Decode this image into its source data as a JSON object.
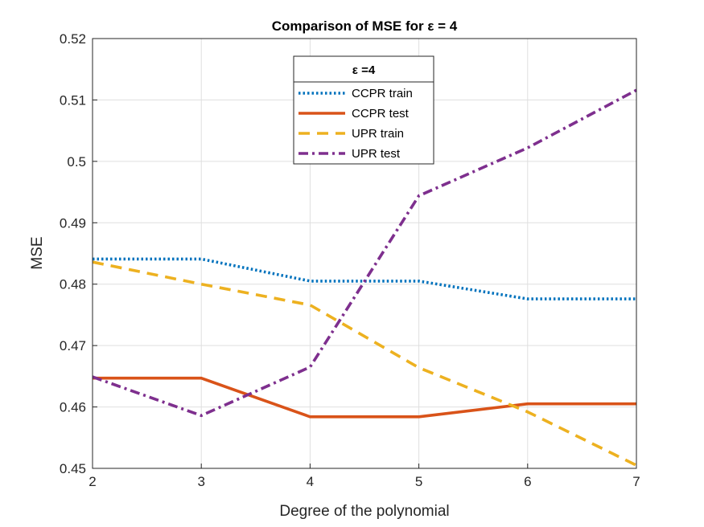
{
  "chart_data": {
    "type": "line",
    "title": "Comparison of MSE for ε = 4",
    "xlabel": "Degree of the polynomial",
    "ylabel": "MSE",
    "xlim": [
      2,
      7
    ],
    "ylim": [
      0.45,
      0.52
    ],
    "xticks": [
      "2",
      "3",
      "4",
      "5",
      "6",
      "7"
    ],
    "yticks": [
      "0.45",
      "0.46",
      "0.47",
      "0.48",
      "0.49",
      "0.5",
      "0.51",
      "0.52"
    ],
    "x": [
      2,
      3,
      4,
      5,
      6,
      7
    ],
    "grid": true,
    "legend": {
      "title": "ε =4",
      "position": "top-center"
    },
    "series": [
      {
        "name": "CCPR train",
        "values": [
          0.4841,
          0.4841,
          0.4805,
          0.4805,
          0.4776,
          0.4776
        ],
        "color": "#0072BD",
        "style": "dotted"
      },
      {
        "name": "CCPR test",
        "values": [
          0.4647,
          0.4647,
          0.4584,
          0.4584,
          0.4605,
          0.4605
        ],
        "color": "#D95319",
        "style": "solid"
      },
      {
        "name": "UPR train",
        "values": [
          0.4836,
          0.48,
          0.4766,
          0.4664,
          0.4592,
          0.4505
        ],
        "color": "#EDB120",
        "style": "dashed"
      },
      {
        "name": "UPR test",
        "values": [
          0.4649,
          0.4586,
          0.4665,
          0.4944,
          0.5022,
          0.5116
        ],
        "color": "#7E2F8E",
        "style": "dashdot"
      }
    ]
  }
}
